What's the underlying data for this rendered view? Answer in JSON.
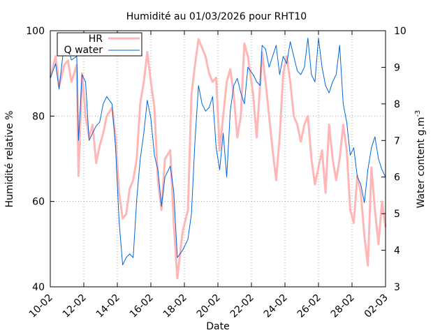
{
  "chart_data": {
    "type": "line",
    "title": "Humidité au 01/03/2026 pour RHT10",
    "xlabel": "Date",
    "ylabel": "Humidité relative %",
    "y2label": "Water content g.m",
    "y2label_sup": "-3",
    "x_ticks": [
      "10-02",
      "12-02",
      "14-02",
      "16-02",
      "18-02",
      "20-02",
      "22-02",
      "24-02",
      "26-02",
      "28-02",
      "02-03"
    ],
    "x_range": [
      10,
      29
    ],
    "ylim": [
      40,
      100
    ],
    "y_ticks": [
      "40",
      "60",
      "80",
      "100"
    ],
    "y2lim": [
      3,
      10
    ],
    "y2_ticks": [
      "3",
      "4",
      "5",
      "6",
      "7",
      "8",
      "9",
      "10"
    ],
    "grid": true,
    "legend_position": "top-left",
    "series": [
      {
        "name": "HR",
        "axis": "left",
        "color": "#ffb6b6",
        "x": [
          10,
          10.3,
          10.5,
          10.8,
          11.0,
          11.2,
          11.5,
          11.6,
          11.8,
          12.0,
          12.2,
          12.4,
          12.6,
          12.8,
          13.0,
          13.2,
          13.5,
          13.7,
          13.9,
          14.1,
          14.3,
          14.5,
          14.7,
          14.9,
          15.1,
          15.3,
          15.5,
          15.7,
          15.9,
          16.1,
          16.3,
          16.5,
          16.8,
          17.0,
          17.2,
          17.5,
          17.8,
          18.0,
          18.2,
          18.4,
          18.6,
          18.8,
          19.0,
          19.2,
          19.4,
          19.6,
          19.8,
          20.0,
          20.2,
          20.4,
          20.6,
          20.8,
          21.0,
          21.2,
          21.5,
          21.7,
          21.9,
          22.0,
          22.2,
          22.4,
          22.6,
          22.8,
          23.0,
          23.2,
          23.4,
          23.6,
          23.8,
          24.0,
          24.2,
          24.4,
          24.6,
          24.8,
          25.0,
          25.2,
          25.4,
          25.6,
          25.8,
          26.0,
          26.2,
          26.4,
          26.6,
          26.8,
          27.0,
          27.2,
          27.4,
          27.6,
          27.8,
          28.0,
          28.2,
          28.4,
          28.6,
          28.8,
          29.0
        ],
        "values": [
          89,
          94,
          87,
          92,
          93,
          88,
          92,
          66,
          90,
          80,
          75,
          78,
          69,
          73,
          76,
          80,
          82,
          75,
          62,
          56,
          57,
          63,
          65,
          70,
          83,
          88,
          95,
          88,
          82,
          65,
          58,
          70,
          72,
          55,
          42,
          53,
          58,
          85,
          92,
          98,
          96,
          94,
          90,
          88,
          89,
          72,
          80,
          88,
          91,
          85,
          75,
          80,
          97,
          94,
          85,
          75,
          88,
          95,
          88,
          80,
          72,
          65,
          75,
          90,
          94,
          88,
          80,
          78,
          74,
          78,
          80,
          70,
          64,
          68,
          72,
          62,
          78,
          70,
          65,
          70,
          78,
          72,
          58,
          55,
          66,
          62,
          52,
          45,
          68,
          58,
          50,
          60,
          54
        ]
      },
      {
        "name": "Q water",
        "axis": "right",
        "color": "#0066dd",
        "x": [
          10,
          10.3,
          10.5,
          10.8,
          11.0,
          11.2,
          11.5,
          11.6,
          11.8,
          12.0,
          12.2,
          12.4,
          12.6,
          12.8,
          13.0,
          13.2,
          13.5,
          13.7,
          13.9,
          14.1,
          14.3,
          14.5,
          14.7,
          14.9,
          15.1,
          15.3,
          15.5,
          15.7,
          15.9,
          16.1,
          16.3,
          16.5,
          16.8,
          17.0,
          17.2,
          17.5,
          17.8,
          18.0,
          18.2,
          18.4,
          18.6,
          18.8,
          19.0,
          19.2,
          19.4,
          19.6,
          19.8,
          20.0,
          20.2,
          20.4,
          20.6,
          20.8,
          21.0,
          21.2,
          21.5,
          21.7,
          21.9,
          22.0,
          22.2,
          22.4,
          22.6,
          22.8,
          23.0,
          23.2,
          23.4,
          23.6,
          23.8,
          24.0,
          24.2,
          24.4,
          24.6,
          24.8,
          25.0,
          25.2,
          25.4,
          25.6,
          25.8,
          26.0,
          26.2,
          26.4,
          26.6,
          26.8,
          27.0,
          27.2,
          27.4,
          27.6,
          27.8,
          28.0,
          28.2,
          28.4,
          28.6,
          28.8,
          29.0
        ],
        "values": [
          8.7,
          9.1,
          8.4,
          9.7,
          9.5,
          9.2,
          9.3,
          7.0,
          8.8,
          8.6,
          7.0,
          7.2,
          7.4,
          7.5,
          8.0,
          8.2,
          8.0,
          6.8,
          4.8,
          3.6,
          3.8,
          3.9,
          3.8,
          5.4,
          6.5,
          7.2,
          8.1,
          7.6,
          6.6,
          6.2,
          5.2,
          6.0,
          6.3,
          5.6,
          3.8,
          4.0,
          4.3,
          5.0,
          7.0,
          8.5,
          8.0,
          7.8,
          7.9,
          8.2,
          6.8,
          6.2,
          7.2,
          6.0,
          7.8,
          8.5,
          8.7,
          8.3,
          8.0,
          9.0,
          8.8,
          8.6,
          8.5,
          9.6,
          9.5,
          9.0,
          9.3,
          9.6,
          8.8,
          9.3,
          9.1,
          9.7,
          9.3,
          8.9,
          8.8,
          9.0,
          9.8,
          8.8,
          8.6,
          9.8,
          9.0,
          8.5,
          8.3,
          8.6,
          8.8,
          9.6,
          8.0,
          7.5,
          6.6,
          6.8,
          6.0,
          5.8,
          5.3,
          6.2,
          6.8,
          7.1,
          6.5,
          6.2,
          6.0
        ]
      }
    ]
  }
}
